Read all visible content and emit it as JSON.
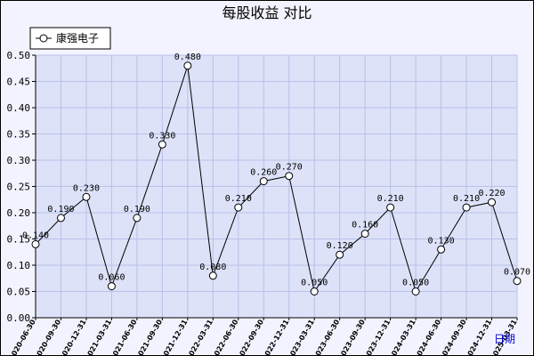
{
  "chart_data": {
    "type": "line",
    "title": "每股收益  对比",
    "xlabel": "日期",
    "ylabel": "",
    "ylim": [
      0,
      0.5
    ],
    "yticks": [
      "0.00",
      "0.05",
      "0.10",
      "0.15",
      "0.20",
      "0.25",
      "0.30",
      "0.35",
      "0.40",
      "0.45",
      "0.50"
    ],
    "grid": true,
    "legend": "top-left",
    "categories": [
      "2020-06-30",
      "2020-09-30",
      "2020-12-31",
      "2021-03-31",
      "2021-06-30",
      "2021-09-30",
      "2021-12-31",
      "2022-03-31",
      "2022-06-30",
      "2022-09-30",
      "2022-12-31",
      "2023-03-31",
      "2023-06-30",
      "2023-09-30",
      "2023-12-31",
      "2024-03-31",
      "2024-06-30",
      "2024-09-30",
      "2024-12-31",
      "2025-03-31"
    ],
    "series": [
      {
        "name": "康强电子",
        "values": [
          0.14,
          0.19,
          0.23,
          0.06,
          0.19,
          0.33,
          0.48,
          0.08,
          0.21,
          0.26,
          0.27,
          0.05,
          0.12,
          0.16,
          0.21,
          0.05,
          0.13,
          0.21,
          0.22,
          0.07
        ],
        "labels": [
          "0.140",
          "0.190",
          "0.230",
          "0.060",
          "0.190",
          "0.330",
          "0.480",
          "0.080",
          "0.210",
          "0.260",
          "0.270",
          "0.050",
          "0.120",
          "0.160",
          "0.210",
          "0.050",
          "0.130",
          "0.210",
          "0.220",
          "0.070"
        ]
      }
    ],
    "colors": {
      "plot_background": "#dde2f8",
      "grid": "#b8c1e8",
      "line": "#000000",
      "marker_fill": "#ffffff"
    }
  }
}
